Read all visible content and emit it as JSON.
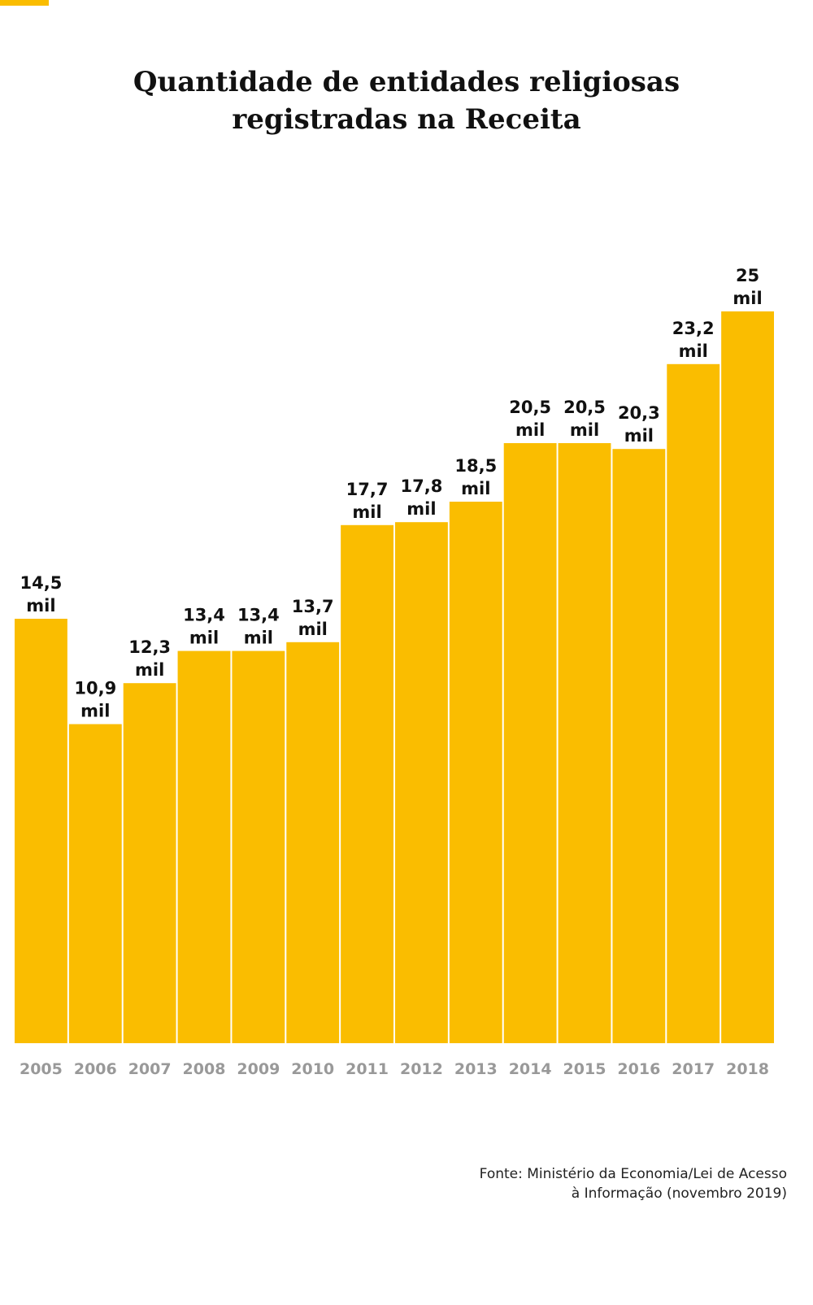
{
  "colors": {
    "accent": "#FABD00",
    "text": "#111111",
    "tick": "#999999"
  },
  "title_lines": [
    "Quantidade de entidades religiosas",
    "registradas na Receita"
  ],
  "source_lines": [
    "Fonte: Ministério da Economia/Lei de Acesso",
    "à Informação (novembro 2019)"
  ],
  "chart_data": {
    "type": "bar",
    "title": "Quantidade de entidades religiosas registradas na Receita",
    "categories": [
      "2005",
      "2006",
      "2007",
      "2008",
      "2009",
      "2010",
      "2011",
      "2012",
      "2013",
      "2014",
      "2015",
      "2016",
      "2017",
      "2018"
    ],
    "values": [
      14.5,
      10.9,
      12.3,
      13.4,
      13.4,
      13.7,
      17.7,
      17.8,
      18.5,
      20.5,
      20.5,
      20.3,
      23.2,
      25
    ],
    "value_labels": [
      "14,5",
      "10,9",
      "12,3",
      "13,4",
      "13,4",
      "13,7",
      "17,7",
      "17,8",
      "18,5",
      "20,5",
      "20,5",
      "20,3",
      "23,2",
      "25"
    ],
    "unit_label": "mil",
    "xlabel": "",
    "ylabel": "",
    "ylim": [
      0,
      25
    ],
    "grid": false,
    "legend": "none"
  }
}
